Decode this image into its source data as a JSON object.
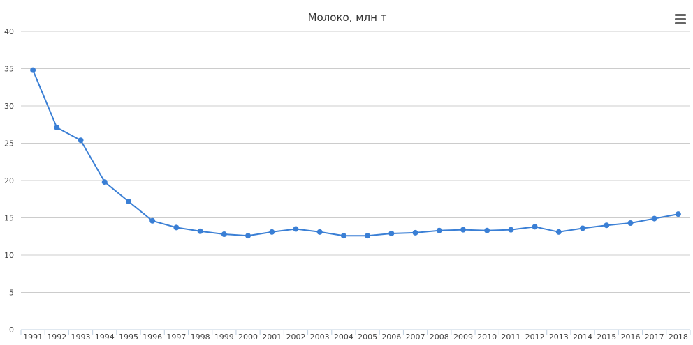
{
  "chart_data": {
    "type": "line",
    "title": "Молоко, млн т",
    "xlabel": "",
    "ylabel": "",
    "categories": [
      "1991",
      "1992",
      "1993",
      "1994",
      "1995",
      "1996",
      "1997",
      "1998",
      "1999",
      "2000",
      "2001",
      "2002",
      "2003",
      "2004",
      "2005",
      "2006",
      "2007",
      "2008",
      "2009",
      "2010",
      "2011",
      "2012",
      "2013",
      "2014",
      "2015",
      "2016",
      "2017",
      "2018"
    ],
    "series": [
      {
        "values": [
          34.8,
          27.1,
          25.4,
          19.8,
          17.2,
          14.6,
          13.7,
          13.2,
          12.8,
          12.6,
          13.1,
          13.5,
          13.1,
          12.6,
          12.6,
          12.9,
          13.0,
          13.3,
          13.4,
          13.3,
          13.4,
          13.8,
          13.1,
          13.6,
          14.0,
          14.3,
          14.9,
          15.5
        ],
        "color": "#3a7fd5"
      }
    ],
    "ylim": [
      0,
      40
    ],
    "yticks": [
      0,
      5,
      10,
      15,
      20,
      25,
      30,
      35,
      40
    ],
    "grid": true,
    "legend": "none"
  },
  "menu": {
    "icon": "hamburger-menu-icon"
  }
}
